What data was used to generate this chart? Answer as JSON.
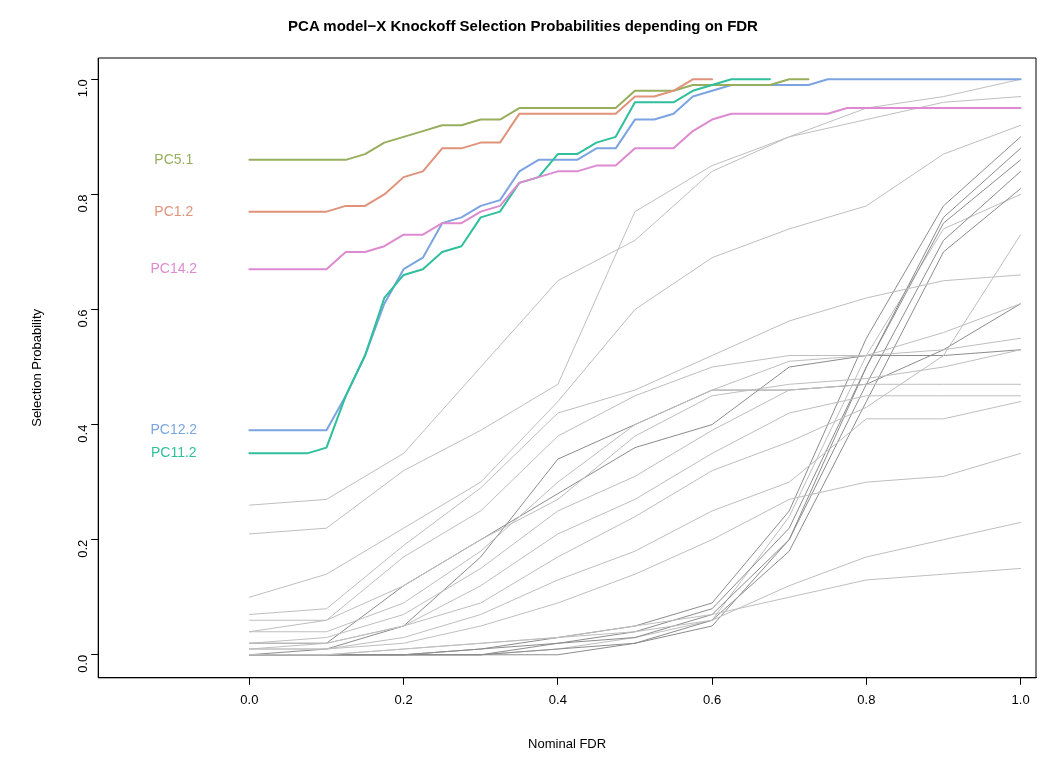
{
  "chart_data": {
    "type": "line",
    "title": "PCA model−X Knockoff Selection Probabilities depending on FDR",
    "xlabel": "Nominal FDR",
    "ylabel": "Selection Probability",
    "xlim": [
      -0.196,
      1.02
    ],
    "ylim": [
      -0.04,
      1.037
    ],
    "xticks": [
      {
        "value": 0,
        "label": "0.0"
      },
      {
        "value": 0.2,
        "label": "0.2"
      },
      {
        "value": 0.4,
        "label": "0.4"
      },
      {
        "value": 0.6,
        "label": "0.6"
      },
      {
        "value": 0.8,
        "label": "0.8"
      },
      {
        "value": 1,
        "label": "1.0"
      }
    ],
    "yticks": [
      {
        "value": 0,
        "label": "0.0"
      },
      {
        "value": 0.2,
        "label": "0.2"
      },
      {
        "value": 0.4,
        "label": "0.4"
      },
      {
        "value": 0.6,
        "label": "0.6"
      },
      {
        "value": 0.8,
        "label": "0.8"
      },
      {
        "value": 1,
        "label": "1.0"
      }
    ],
    "grid": false,
    "legend": false,
    "marker": "none",
    "line_style": "solid",
    "series": [
      {
        "color": "#bebebe",
        "x": [
          0,
          0.1,
          0.2,
          0.3,
          0.4,
          0.5,
          0.6,
          0.7,
          0.8,
          0.9,
          1
        ],
        "values": [
          0.26,
          0.27,
          0.35,
          0.5,
          0.65,
          0.72,
          0.84,
          0.9,
          0.95,
          0.97,
          1.0
        ]
      },
      {
        "color": "#bebebe",
        "x": [
          0,
          0.1,
          0.2,
          0.3,
          0.4,
          0.5,
          0.6,
          0.7,
          0.8,
          0.9,
          1
        ],
        "values": [
          0.21,
          0.22,
          0.32,
          0.39,
          0.47,
          0.77,
          0.85,
          0.9,
          0.93,
          0.96,
          0.97
        ]
      },
      {
        "color": "#bebebe",
        "x": [
          0,
          0.1,
          0.2,
          0.3,
          0.4,
          0.5,
          0.6,
          0.7,
          0.8,
          0.9,
          1
        ],
        "values": [
          0.1,
          0.14,
          0.22,
          0.3,
          0.44,
          0.6,
          0.69,
          0.74,
          0.78,
          0.87,
          0.92
        ]
      },
      {
        "color": "#bebebe",
        "x": [
          0,
          0.1,
          0.2,
          0.3,
          0.4,
          0.5,
          0.6,
          0.7,
          0.8,
          0.9,
          1
        ],
        "values": [
          0.07,
          0.08,
          0.19,
          0.29,
          0.42,
          0.46,
          0.52,
          0.58,
          0.62,
          0.65,
          0.66
        ]
      },
      {
        "color": "#bebebe",
        "x": [
          0,
          0.1,
          0.2,
          0.3,
          0.4,
          0.5,
          0.6,
          0.7,
          0.8,
          0.9,
          1
        ],
        "values": [
          0.06,
          0.06,
          0.17,
          0.25,
          0.38,
          0.45,
          0.5,
          0.52,
          0.52,
          0.53,
          0.55
        ]
      },
      {
        "color": "#bebebe",
        "x": [
          0,
          0.1,
          0.2,
          0.3,
          0.4,
          0.5,
          0.6,
          0.7,
          0.8,
          0.9,
          1
        ],
        "values": [
          0.04,
          0.06,
          0.12,
          0.2,
          0.27,
          0.38,
          0.45,
          0.47,
          0.48,
          0.5,
          0.53
        ]
      },
      {
        "color": "#bebebe",
        "x": [
          0,
          0.1,
          0.2,
          0.3,
          0.4,
          0.5,
          0.6,
          0.7,
          0.8,
          0.9,
          1
        ],
        "values": [
          0.04,
          0.04,
          0.09,
          0.18,
          0.3,
          0.4,
          0.46,
          0.51,
          0.52,
          0.56,
          0.61
        ]
      },
      {
        "color": "#bebebe",
        "x": [
          0,
          0.1,
          0.2,
          0.3,
          0.4,
          0.5,
          0.6,
          0.7,
          0.8,
          0.9,
          1
        ],
        "values": [
          0.02,
          0.03,
          0.07,
          0.15,
          0.25,
          0.31,
          0.39,
          0.46,
          0.47,
          0.47,
          0.47
        ]
      },
      {
        "color": "#bebebe",
        "x": [
          0,
          0.1,
          0.2,
          0.3,
          0.4,
          0.5,
          0.6,
          0.7,
          0.8,
          0.9,
          1
        ],
        "values": [
          0.02,
          0.02,
          0.05,
          0.12,
          0.21,
          0.27,
          0.35,
          0.42,
          0.45,
          0.45,
          0.45
        ]
      },
      {
        "color": "#bebebe",
        "x": [
          0,
          0.1,
          0.2,
          0.3,
          0.4,
          0.5,
          0.6,
          0.7,
          0.8,
          0.9,
          1
        ],
        "values": [
          0.01,
          0.02,
          0.05,
          0.09,
          0.17,
          0.24,
          0.32,
          0.37,
          0.43,
          0.52,
          0.73
        ]
      },
      {
        "color": "#bebebe",
        "x": [
          0,
          0.1,
          0.2,
          0.3,
          0.4,
          0.5,
          0.6,
          0.7,
          0.8,
          0.9,
          1
        ],
        "values": [
          0.01,
          0.01,
          0.03,
          0.07,
          0.13,
          0.18,
          0.25,
          0.3,
          0.41,
          0.41,
          0.44
        ]
      },
      {
        "color": "#bebebe",
        "x": [
          0,
          0.1,
          0.2,
          0.3,
          0.4,
          0.5,
          0.6,
          0.7,
          0.8,
          0.9,
          1
        ],
        "values": [
          0.01,
          0.01,
          0.02,
          0.05,
          0.09,
          0.14,
          0.2,
          0.27,
          0.3,
          0.31,
          0.35
        ]
      },
      {
        "color": "#bebebe",
        "x": [
          0,
          0.1,
          0.2,
          0.3,
          0.4,
          0.5,
          0.6,
          0.7,
          0.8,
          0.9,
          1
        ],
        "values": [
          0,
          0,
          0.01,
          0.02,
          0.03,
          0.05,
          0.07,
          0.1,
          0.13,
          0.14,
          0.15
        ]
      },
      {
        "color": "#bebebe",
        "x": [
          0,
          0.1,
          0.2,
          0.3,
          0.4,
          0.5,
          0.6,
          0.7,
          0.8,
          0.9,
          1
        ],
        "values": [
          0,
          0,
          0.01,
          0.02,
          0.03,
          0.04,
          0.06,
          0.12,
          0.17,
          0.2,
          0.23
        ]
      },
      {
        "color": "#8c8c8c",
        "x": [
          0,
          0.1,
          0.2,
          0.3,
          0.4,
          0.5,
          0.6,
          0.7,
          0.8,
          0.9,
          1
        ],
        "values": [
          0.02,
          0.02,
          0.12,
          0.2,
          0.28,
          0.36,
          0.4,
          0.5,
          0.52,
          0.52,
          0.53
        ]
      },
      {
        "color": "#8c8c8c",
        "x": [
          0,
          0.1,
          0.2,
          0.3,
          0.4,
          0.5,
          0.6,
          0.7,
          0.8,
          0.9,
          1
        ],
        "values": [
          0,
          0.01,
          0.05,
          0.17,
          0.34,
          0.4,
          0.46,
          0.46,
          0.47,
          0.53,
          0.61
        ]
      },
      {
        "color": "#8c8c8c",
        "x": [
          0,
          0.1,
          0.2,
          0.3,
          0.4,
          0.5,
          0.6,
          0.7,
          0.8,
          0.9,
          1
        ],
        "values": [
          0,
          0,
          0,
          0.01,
          0.03,
          0.05,
          0.09,
          0.25,
          0.55,
          0.78,
          0.9
        ]
      },
      {
        "color": "#8c8c8c",
        "x": [
          0,
          0.1,
          0.2,
          0.3,
          0.4,
          0.5,
          0.6,
          0.7,
          0.8,
          0.9,
          1
        ],
        "values": [
          0,
          0,
          0,
          0.01,
          0.02,
          0.04,
          0.08,
          0.22,
          0.5,
          0.75,
          0.86
        ]
      },
      {
        "color": "#8c8c8c",
        "x": [
          0,
          0.1,
          0.2,
          0.3,
          0.4,
          0.5,
          0.6,
          0.7,
          0.8,
          0.9,
          1
        ],
        "values": [
          0,
          0,
          0,
          0,
          0.02,
          0.03,
          0.07,
          0.2,
          0.47,
          0.72,
          0.84
        ]
      },
      {
        "color": "#8c8c8c",
        "x": [
          0,
          0.1,
          0.2,
          0.3,
          0.4,
          0.5,
          0.6,
          0.7,
          0.8,
          0.9,
          1
        ],
        "values": [
          0,
          0,
          0,
          0,
          0.01,
          0.02,
          0.06,
          0.18,
          0.44,
          0.7,
          0.81
        ]
      },
      {
        "color": "#8c8c8c",
        "x": [
          0,
          0.1,
          0.2,
          0.3,
          0.4,
          0.5,
          0.6,
          0.7,
          0.8,
          0.9,
          1
        ],
        "values": [
          0,
          0,
          0,
          0,
          0,
          0.02,
          0.05,
          0.2,
          0.5,
          0.76,
          0.88
        ]
      },
      {
        "color": "#bebebe",
        "x": [
          0,
          0.1,
          0.2,
          0.3,
          0.4,
          0.5,
          0.6,
          0.7,
          0.8,
          0.9,
          1
        ],
        "values": [
          0,
          0,
          0,
          0,
          0.01,
          0.03,
          0.06,
          0.24,
          0.52,
          0.74,
          0.8
        ]
      },
      {
        "name": "PC1.2",
        "color": "#e0937a",
        "x": [
          0,
          0.025,
          0.05,
          0.075,
          0.1,
          0.125,
          0.15,
          0.175,
          0.2,
          0.225,
          0.25,
          0.275,
          0.3,
          0.325,
          0.35,
          0.375,
          0.4,
          0.425,
          0.45,
          0.475,
          0.5,
          0.525,
          0.55,
          0.575,
          0.6
        ],
        "values": [
          0.77,
          0.77,
          0.77,
          0.77,
          0.77,
          0.78,
          0.78,
          0.8,
          0.83,
          0.84,
          0.88,
          0.88,
          0.89,
          0.89,
          0.94,
          0.94,
          0.94,
          0.94,
          0.94,
          0.94,
          0.97,
          0.97,
          0.98,
          1,
          1
        ]
      },
      {
        "name": "PC14.2",
        "color": "#dd8ad0",
        "x": [
          0,
          0.025,
          0.05,
          0.075,
          0.1,
          0.125,
          0.15,
          0.175,
          0.2,
          0.225,
          0.25,
          0.275,
          0.3,
          0.325,
          0.35,
          0.375,
          0.4,
          0.425,
          0.45,
          0.475,
          0.5,
          0.525,
          0.55,
          0.575,
          0.6,
          0.625,
          0.65,
          0.675,
          0.7,
          0.725,
          0.75,
          0.775,
          0.8,
          0.825,
          0.85,
          0.875,
          0.9,
          0.925,
          0.95,
          0.975,
          1
        ],
        "values": [
          0.67,
          0.67,
          0.67,
          0.67,
          0.67,
          0.7,
          0.7,
          0.71,
          0.73,
          0.73,
          0.75,
          0.75,
          0.77,
          0.78,
          0.82,
          0.83,
          0.84,
          0.84,
          0.85,
          0.85,
          0.88,
          0.88,
          0.88,
          0.91,
          0.93,
          0.94,
          0.94,
          0.94,
          0.94,
          0.94,
          0.94,
          0.95,
          0.95,
          0.95,
          0.95,
          0.95,
          0.95,
          0.95,
          0.95,
          0.95,
          0.95
        ]
      },
      {
        "name": "PC11.2",
        "color": "#2fbf9c",
        "x": [
          0,
          0.025,
          0.05,
          0.075,
          0.1,
          0.125,
          0.15,
          0.175,
          0.2,
          0.225,
          0.25,
          0.275,
          0.3,
          0.325,
          0.35,
          0.375,
          0.4,
          0.425,
          0.45,
          0.475,
          0.5,
          0.525,
          0.55,
          0.575,
          0.6,
          0.625,
          0.65,
          0.675
        ],
        "values": [
          0.35,
          0.35,
          0.35,
          0.35,
          0.36,
          0.45,
          0.52,
          0.62,
          0.66,
          0.67,
          0.7,
          0.71,
          0.76,
          0.77,
          0.82,
          0.83,
          0.87,
          0.87,
          0.89,
          0.9,
          0.96,
          0.96,
          0.96,
          0.98,
          0.99,
          1,
          1,
          1
        ]
      },
      {
        "name": "PC5.1",
        "color": "#97ae5d",
        "x": [
          0,
          0.025,
          0.05,
          0.075,
          0.1,
          0.125,
          0.15,
          0.175,
          0.2,
          0.225,
          0.25,
          0.275,
          0.3,
          0.325,
          0.35,
          0.375,
          0.4,
          0.425,
          0.45,
          0.475,
          0.5,
          0.525,
          0.55,
          0.575,
          0.6,
          0.625,
          0.65,
          0.675,
          0.7,
          0.725
        ],
        "values": [
          0.86,
          0.86,
          0.86,
          0.86,
          0.86,
          0.86,
          0.87,
          0.89,
          0.9,
          0.91,
          0.92,
          0.92,
          0.93,
          0.93,
          0.95,
          0.95,
          0.95,
          0.95,
          0.95,
          0.95,
          0.98,
          0.98,
          0.98,
          0.99,
          0.99,
          0.99,
          0.99,
          0.99,
          1,
          1
        ]
      },
      {
        "name": "PC12.2",
        "color": "#7ba4e0",
        "x": [
          0,
          0.025,
          0.05,
          0.075,
          0.1,
          0.125,
          0.15,
          0.175,
          0.2,
          0.225,
          0.25,
          0.275,
          0.3,
          0.325,
          0.35,
          0.375,
          0.4,
          0.425,
          0.45,
          0.475,
          0.5,
          0.525,
          0.55,
          0.575,
          0.6,
          0.625,
          0.65,
          0.675,
          0.7,
          0.725,
          0.75,
          0.775,
          0.8,
          0.825,
          0.85,
          0.875,
          0.9,
          0.925,
          0.95,
          0.975,
          1
        ],
        "values": [
          0.39,
          0.39,
          0.39,
          0.39,
          0.39,
          0.45,
          0.52,
          0.61,
          0.67,
          0.69,
          0.75,
          0.76,
          0.78,
          0.79,
          0.84,
          0.86,
          0.86,
          0.86,
          0.88,
          0.88,
          0.93,
          0.93,
          0.94,
          0.97,
          0.98,
          0.99,
          0.99,
          0.99,
          0.99,
          0.99,
          1,
          1,
          1,
          1,
          1,
          1,
          1,
          1,
          1,
          1,
          1
        ]
      }
    ]
  }
}
